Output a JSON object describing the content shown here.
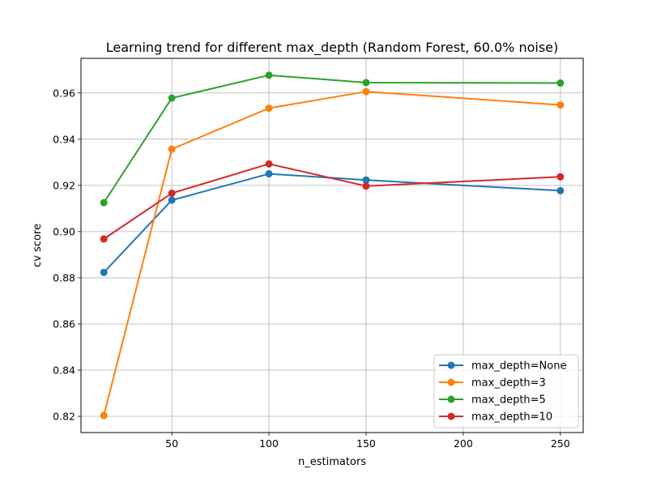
{
  "chart_data": {
    "type": "line",
    "title": "Learning trend for different max_depth (Random Forest, 60.0% noise)",
    "xlabel": "n_estimators",
    "ylabel": "cv score",
    "x": [
      15,
      50,
      100,
      150,
      250
    ],
    "xlim": [
      3.25,
      261.75
    ],
    "ylim": [
      0.813,
      0.975
    ],
    "xticks": [
      50,
      100,
      150,
      200,
      250
    ],
    "yticks": [
      0.82,
      0.84,
      0.86,
      0.88,
      0.9,
      0.92,
      0.94,
      0.96
    ],
    "ytick_labels": [
      "0.82",
      "0.84",
      "0.86",
      "0.88",
      "0.90",
      "0.92",
      "0.94",
      "0.96"
    ],
    "grid": true,
    "legend_position": "lower-right",
    "series": [
      {
        "name": "max_depth=None",
        "color": "#1f77b4",
        "values": [
          0.8823,
          0.9136,
          0.925,
          0.9223,
          0.9177
        ]
      },
      {
        "name": "max_depth=3",
        "color": "#ff7f0e",
        "values": [
          0.8204,
          0.9357,
          0.9534,
          0.9606,
          0.9548
        ]
      },
      {
        "name": "max_depth=5",
        "color": "#2ca02c",
        "values": [
          0.9125,
          0.9578,
          0.9677,
          0.9645,
          0.9643
        ]
      },
      {
        "name": "max_depth=10",
        "color": "#d62728",
        "values": [
          0.8968,
          0.9166,
          0.9293,
          0.9197,
          0.9237
        ]
      }
    ]
  }
}
